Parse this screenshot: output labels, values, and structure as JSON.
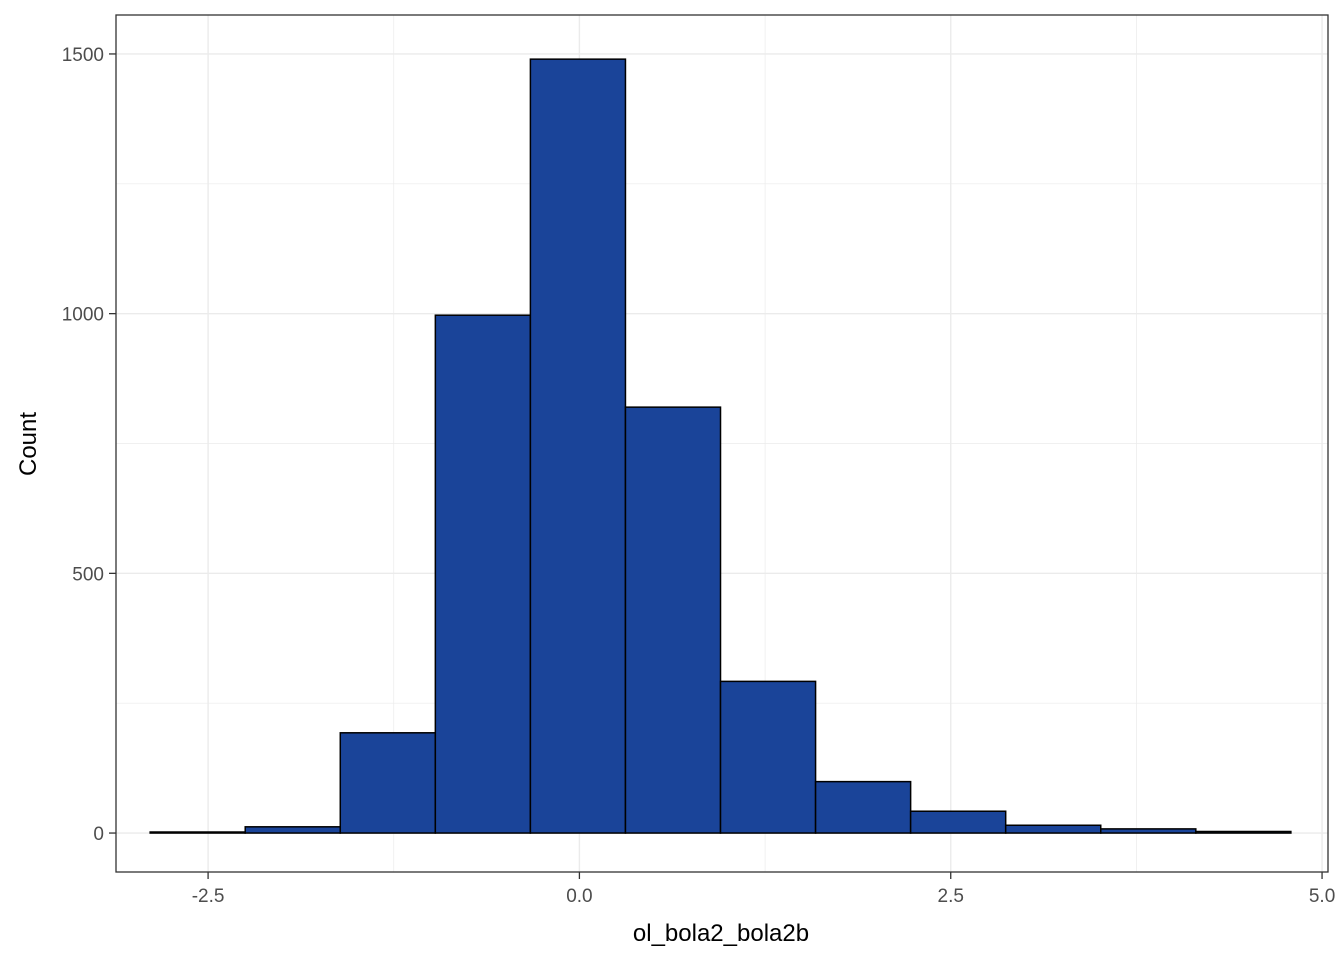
{
  "chart_data": {
    "type": "bar",
    "subtype": "histogram",
    "xlabel": "ol_bola2_bola2b",
    "ylabel": "Count",
    "xlim": [
      -3.12,
      5.04
    ],
    "ylim": [
      -75,
      1575
    ],
    "x_ticks": [
      -2.5,
      0.0,
      2.5,
      5.0
    ],
    "x_tick_labels": [
      "-2.5",
      "0.0",
      "2.5",
      "5.0"
    ],
    "y_ticks": [
      0,
      500,
      1000,
      1500
    ],
    "y_tick_labels": [
      "0",
      "500",
      "1000",
      "1500"
    ],
    "grid": true,
    "bar_fill": "#1a4499",
    "bar_outline": "#000000",
    "panel_border": "#333333",
    "grid_color": "#ebebeb",
    "bins": [
      {
        "x0": -2.89,
        "x1": -2.25,
        "count": 2
      },
      {
        "x0": -2.25,
        "x1": -1.61,
        "count": 12
      },
      {
        "x0": -1.61,
        "x1": -0.97,
        "count": 193
      },
      {
        "x0": -0.97,
        "x1": -0.33,
        "count": 997
      },
      {
        "x0": -0.33,
        "x1": 0.31,
        "count": 1490
      },
      {
        "x0": 0.31,
        "x1": 0.95,
        "count": 820
      },
      {
        "x0": 0.95,
        "x1": 1.59,
        "count": 292
      },
      {
        "x0": 1.59,
        "x1": 2.23,
        "count": 99
      },
      {
        "x0": 2.23,
        "x1": 2.87,
        "count": 42
      },
      {
        "x0": 2.87,
        "x1": 3.51,
        "count": 15
      },
      {
        "x0": 3.51,
        "x1": 4.15,
        "count": 8
      },
      {
        "x0": 4.15,
        "x1": 4.79,
        "count": 3
      }
    ]
  }
}
